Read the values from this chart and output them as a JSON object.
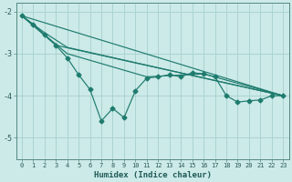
{
  "xlabel": "Humidex (Indice chaleur)",
  "ylabel": "",
  "bg_color": "#cceae8",
  "grid_color": "#aad4d0",
  "line_color": "#1e7b6e",
  "xlim": [
    -0.5,
    23.5
  ],
  "ylim": [
    -5.5,
    -1.8
  ],
  "yticks": [
    -5,
    -4,
    -3,
    -2
  ],
  "xticks": [
    0,
    1,
    2,
    3,
    4,
    5,
    6,
    7,
    8,
    9,
    10,
    11,
    12,
    13,
    14,
    15,
    16,
    17,
    18,
    19,
    20,
    21,
    22,
    23
  ],
  "main_series": {
    "x": [
      0,
      1,
      2,
      3,
      4,
      5,
      6,
      7,
      8,
      9,
      10,
      11,
      12,
      13,
      14,
      15,
      16,
      17,
      18,
      19,
      20,
      21,
      22,
      23
    ],
    "y": [
      -2.1,
      -2.3,
      -2.55,
      -2.8,
      -3.1,
      -3.5,
      -3.85,
      -4.6,
      -4.3,
      -4.52,
      -3.88,
      -3.58,
      -3.55,
      -3.5,
      -3.55,
      -3.45,
      -3.48,
      -3.55,
      -4.0,
      -4.15,
      -4.12,
      -4.1,
      -4.0,
      -4.0
    ]
  },
  "line1": {
    "x": [
      0,
      23
    ],
    "y": [
      -2.1,
      -4.0
    ]
  },
  "line2": {
    "x": [
      0,
      3,
      23
    ],
    "y": [
      -2.1,
      -2.8,
      -4.0
    ]
  },
  "line3": {
    "x": [
      0,
      2,
      4,
      23
    ],
    "y": [
      -2.1,
      -2.5,
      -2.85,
      -4.0
    ]
  },
  "line4": {
    "x": [
      0,
      4,
      11,
      16,
      23
    ],
    "y": [
      -2.1,
      -3.0,
      -3.55,
      -3.48,
      -4.0
    ]
  }
}
